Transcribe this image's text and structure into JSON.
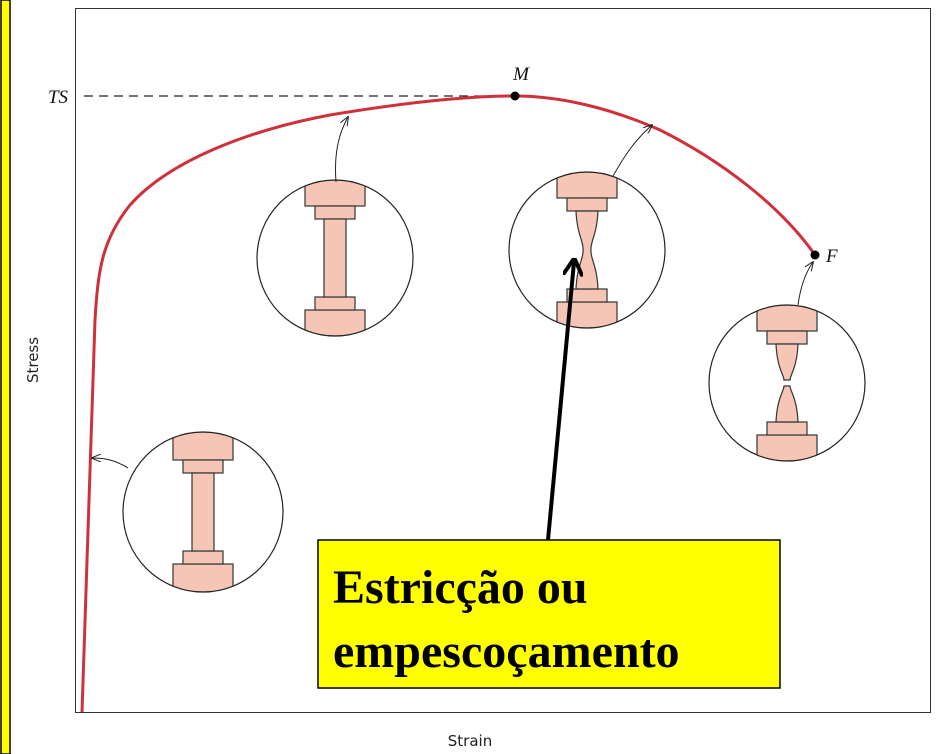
{
  "diagram": {
    "y_axis_label": "Stress",
    "x_axis_label": "Strain",
    "points": {
      "ts": "TS",
      "m": "M",
      "f": "F"
    },
    "callout": {
      "lines": [
        "Estricção ou",
        "empescoçamento"
      ]
    }
  }
}
